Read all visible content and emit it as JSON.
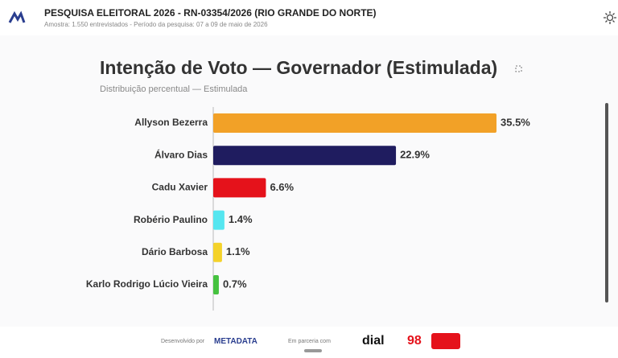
{
  "header": {
    "title": "PESQUISA ELEITORAL 2026 - RN-03354/2026 (RIO GRANDE DO NORTE)",
    "subtitle": "Amostra: 1.550 entrevistados - Período da pesquisa: 07 a 09 de maio de 2026"
  },
  "chart_data": {
    "type": "bar",
    "orientation": "horizontal",
    "title": "Intenção de Voto — Governador (Estimulada)",
    "subtitle": "Distribuição percentual — Estimulada",
    "categories": [
      "Allyson Bezerra",
      "Álvaro Dias",
      "Cadu Xavier",
      "Robério Paulino",
      "Dário Barbosa",
      "Karlo Rodrigo Lúcio Vieira"
    ],
    "values": [
      35.5,
      22.9,
      6.6,
      1.4,
      1.1,
      0.7
    ],
    "value_labels": [
      "35.5%",
      "22.9%",
      "6.6%",
      "1.4%",
      "1.1%",
      "0.7%"
    ],
    "colors": [
      "#f2a127",
      "#1f1c5f",
      "#e5121b",
      "#55e6f0",
      "#f4d22a",
      "#45c23f"
    ]
  },
  "footer": {
    "developed_by": "Desenvolvido por",
    "brand": "METADATA",
    "partner": "Em parceria com",
    "partner_logo": "dial",
    "partner_logo2": "98"
  }
}
